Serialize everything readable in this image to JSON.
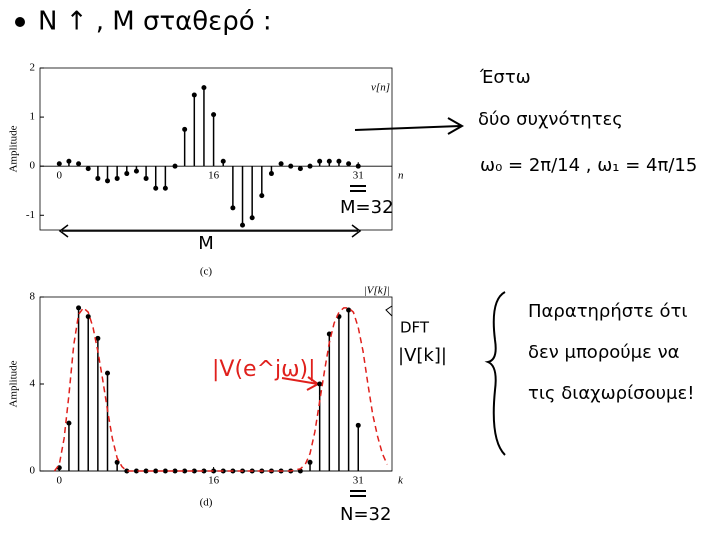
{
  "chart_data": [
    {
      "type": "stem",
      "label": "(c)",
      "y_label": "Amplitude",
      "x_label": "n",
      "x": [
        0,
        1,
        2,
        3,
        4,
        5,
        6,
        7,
        8,
        9,
        10,
        11,
        12,
        13,
        14,
        15,
        16,
        17,
        18,
        19,
        20,
        21,
        22,
        23,
        24,
        25,
        26,
        27,
        28,
        29,
        30,
        31
      ],
      "series": [
        {
          "name": "v[n]",
          "color": "#000000",
          "values": [
            0.05,
            0.1,
            0.05,
            -0.05,
            -0.25,
            -0.3,
            -0.25,
            -0.15,
            -0.1,
            -0.25,
            -0.45,
            -0.45,
            0,
            0.75,
            1.45,
            1.6,
            1.05,
            0.1,
            -0.85,
            -1.2,
            -1.05,
            -0.6,
            -0.15,
            0.05,
            0,
            -0.05,
            0,
            0.1,
            0.1,
            0.1,
            0.05,
            0
          ]
        }
      ],
      "xlim": [
        -2,
        34.5
      ],
      "ylim": [
        -1.3,
        2
      ],
      "xticks": [
        0,
        16,
        31
      ],
      "yticks": [
        -1,
        0,
        1,
        2
      ]
    },
    {
      "type": "stem",
      "label": "(d)",
      "y_label": "Amplitude",
      "x_label": "k",
      "x": [
        0,
        1,
        2,
        3,
        4,
        5,
        6,
        7,
        8,
        9,
        10,
        11,
        12,
        13,
        14,
        15,
        16,
        17,
        18,
        19,
        20,
        21,
        22,
        23,
        24,
        25,
        26,
        27,
        28,
        29,
        30,
        31
      ],
      "series": [
        {
          "name": "|V[k]|",
          "color": "#000000",
          "values": [
            0.15,
            2.2,
            7.5,
            7.1,
            6.1,
            4.5,
            0.4,
            0,
            0,
            0,
            0,
            0,
            0,
            0,
            0,
            0,
            0,
            0,
            0,
            0,
            0,
            0,
            0,
            0,
            0,
            0,
            0.4,
            4.0,
            6.3,
            7.1,
            7.4,
            2.1
          ]
        },
        {
          "name": "|V(e^jω)|",
          "color": "#e0201c",
          "style": "dashed",
          "x": [
            -0.5,
            0,
            0.5,
            1,
            1.5,
            2,
            2.5,
            3,
            3.5,
            4,
            4.5,
            5,
            5.5,
            6,
            6.5,
            7,
            8,
            24,
            25,
            25.5,
            26,
            26.5,
            27,
            27.5,
            28,
            28.5,
            29,
            29.5,
            30,
            30.5,
            31,
            31.5,
            32,
            32.5,
            33,
            33.5,
            34
          ],
          "values": [
            0,
            0.3,
            1.5,
            3.5,
            5.8,
            7.2,
            7.5,
            7.3,
            6.6,
            5.5,
            4.2,
            2.8,
            1.5,
            0.6,
            0.2,
            0,
            0,
            0,
            0.1,
            0.3,
            0.8,
            1.8,
            3.2,
            4.6,
            5.9,
            6.8,
            7.3,
            7.5,
            7.5,
            7.3,
            6.6,
            5.5,
            4,
            2.6,
            1.6,
            0.8,
            0.3
          ]
        }
      ],
      "xlim": [
        -2,
        34.5
      ],
      "ylim": [
        0,
        8
      ],
      "xticks": [
        0,
        16,
        31
      ],
      "yticks": [
        0,
        4,
        8
      ]
    }
  ],
  "annotations": {
    "heading": "N ↑ , M σταθερό :",
    "estw": "Έστω",
    "two_freq": "δύο συχνότητες",
    "omega": "ω₀ = 2π/14 , ω₁ = 4π/15",
    "m_eq": "M=32",
    "m_span": "M",
    "dft": "DFT",
    "vk": "|V[k]|",
    "n_eq": "N=32",
    "note": [
      "Παρατηρήστε ότι",
      "δεν μπορούμε να",
      "τις διαχωρίσουμε!"
    ]
  }
}
